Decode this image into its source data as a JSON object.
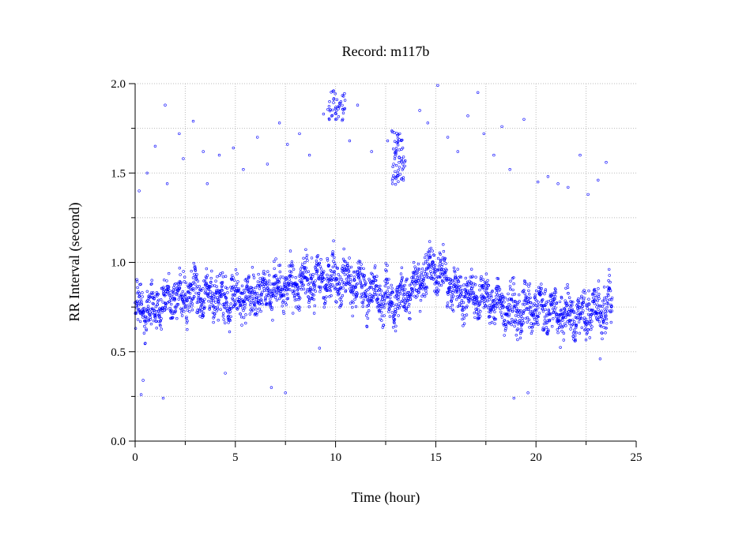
{
  "chart_data": {
    "type": "scatter",
    "title": "Record:  m117b",
    "xlabel": "Time (hour)",
    "ylabel": "RR Interval (second)",
    "xlim": [
      0,
      25
    ],
    "ylim": [
      0.0,
      2.0
    ],
    "x_ticks": [
      0,
      5,
      10,
      15,
      20,
      25
    ],
    "x_tick_labels": [
      "0",
      "5",
      "10",
      "15",
      "20",
      "25"
    ],
    "y_ticks": [
      0.0,
      0.5,
      1.0,
      1.5,
      2.0
    ],
    "y_tick_labels": [
      "0.0",
      "0.5",
      "1.0",
      "1.5",
      "2.0"
    ],
    "grid": true,
    "marker": "open-circle",
    "series_color": "#0000ff",
    "x_range_recorded": [
      0.0,
      23.8
    ],
    "baseline_profile": {
      "x": [
        0,
        1,
        2,
        3,
        4,
        5,
        6,
        7,
        8,
        9,
        10,
        11,
        12,
        13,
        14,
        15,
        16,
        17,
        18,
        19,
        20,
        21,
        22,
        23,
        23.8
      ],
      "y": [
        0.72,
        0.75,
        0.8,
        0.84,
        0.8,
        0.8,
        0.83,
        0.85,
        0.87,
        0.9,
        0.92,
        0.88,
        0.82,
        0.78,
        0.88,
        0.98,
        0.83,
        0.82,
        0.78,
        0.72,
        0.74,
        0.72,
        0.7,
        0.74,
        0.76
      ]
    },
    "outlier_points": {
      "x": [
        0.2,
        0.6,
        1.0,
        1.5,
        1.6,
        2.2,
        2.4,
        2.9,
        3.4,
        3.6,
        4.2,
        4.9,
        5.4,
        6.1,
        6.6,
        7.2,
        7.6,
        8.2,
        8.7,
        9.4,
        9.7,
        9.9,
        10.0,
        10.1,
        10.4,
        10.7,
        11.1,
        11.8,
        12.6,
        12.9,
        13.0,
        13.1,
        13.2,
        13.3,
        14.2,
        14.6,
        15.1,
        15.6,
        16.1,
        16.6,
        17.1,
        17.4,
        17.9,
        18.3,
        18.7,
        19.4,
        20.1,
        20.6,
        21.1,
        21.6,
        22.2,
        22.6,
        23.1,
        23.5,
        0.3,
        0.4,
        1.4,
        4.5,
        6.8,
        7.5,
        9.2,
        18.9,
        19.6,
        23.2
      ],
      "y": [
        1.4,
        1.5,
        1.65,
        1.88,
        1.44,
        1.72,
        1.58,
        1.79,
        1.62,
        1.44,
        1.6,
        1.64,
        1.52,
        1.7,
        1.55,
        1.78,
        1.66,
        1.72,
        1.6,
        1.83,
        1.9,
        1.96,
        1.8,
        1.87,
        1.93,
        1.68,
        1.88,
        1.62,
        1.68,
        1.55,
        1.62,
        1.5,
        1.72,
        1.58,
        1.85,
        1.78,
        1.99,
        1.7,
        1.62,
        1.82,
        1.95,
        1.72,
        1.6,
        1.76,
        1.52,
        1.8,
        1.45,
        1.48,
        1.44,
        1.42,
        1.6,
        1.38,
        1.46,
        1.56,
        0.26,
        0.34,
        0.24,
        0.38,
        0.3,
        0.27,
        0.52,
        0.24,
        0.27,
        0.46
      ]
    }
  }
}
